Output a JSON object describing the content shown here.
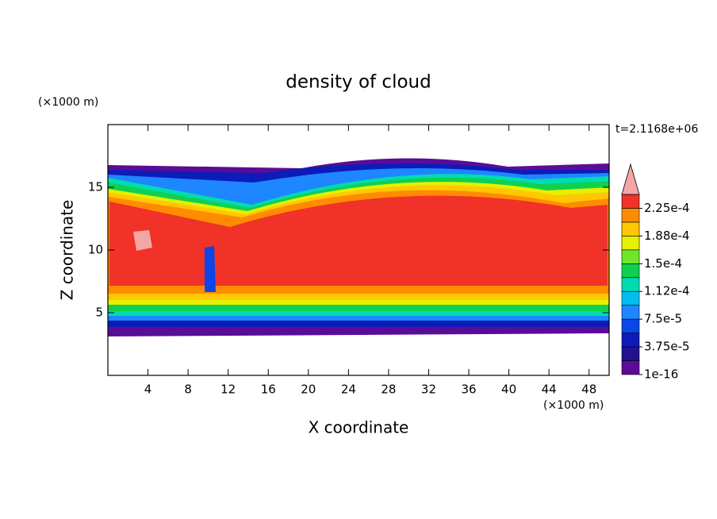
{
  "chart_data": {
    "type": "contour",
    "title": "density of cloud",
    "xlabel": "X coordinate",
    "ylabel": "Z coordinate",
    "x_unit": "(×1000 m)",
    "y_unit": "(×1000 m)",
    "time_label": "t=2.1168e+06",
    "xlim": [
      0,
      50
    ],
    "xticks": [
      4,
      8,
      12,
      16,
      20,
      24,
      28,
      32,
      36,
      40,
      44,
      48
    ],
    "ylim": [
      0,
      20
    ],
    "yticks": [
      5,
      10,
      15
    ],
    "colorbar": {
      "colors": [
        "#5a0c98",
        "#22128c",
        "#0c1cb8",
        "#0c46e8",
        "#1e86ff",
        "#00bff0",
        "#00dcb0",
        "#10d050",
        "#70e628",
        "#e6f000",
        "#ffc800",
        "#ff8c00",
        "#f03228"
      ],
      "over_color": "#f4a6a6",
      "ticks": [
        {
          "value": 1e-16,
          "label": "1e-16"
        },
        {
          "value": 3.75e-05,
          "label": "3.75e-5"
        },
        {
          "value": 7.5e-05,
          "label": "7.5e-5"
        },
        {
          "value": 0.000112,
          "label": "1.12e-4"
        },
        {
          "value": 0.00015,
          "label": "1.5e-4"
        },
        {
          "value": 0.000188,
          "label": "1.88e-4"
        },
        {
          "value": 0.000225,
          "label": "2.25e-4"
        }
      ]
    }
  }
}
